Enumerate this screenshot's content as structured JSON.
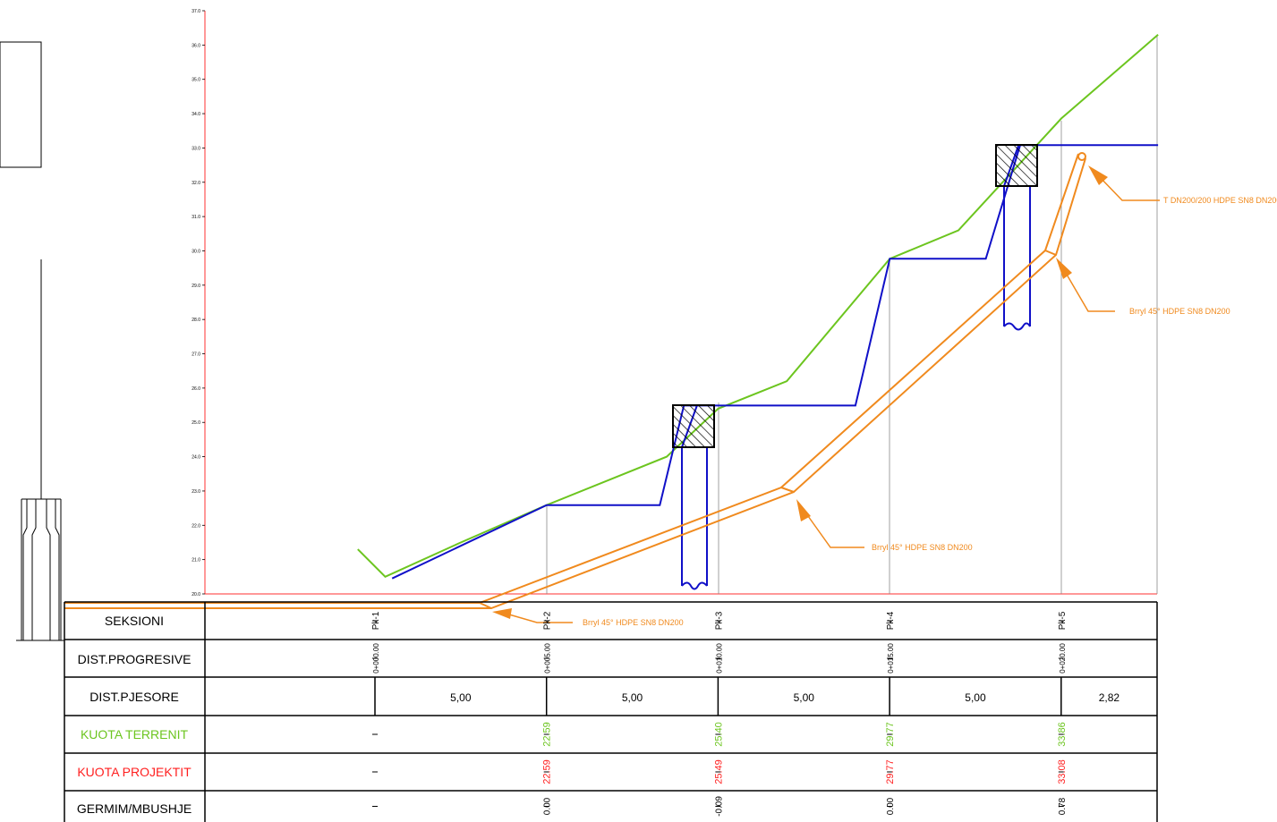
{
  "colors": {
    "terrain": "#6cc51f",
    "project": "#1010c8",
    "pipe": "#f08a1e",
    "axis": "#ff3030",
    "ink": "#000000",
    "grid": "#8a8a8a"
  },
  "y_axis": {
    "ticks": [
      "37.0",
      "36.0",
      "35.0",
      "34.0",
      "33.0",
      "32.0",
      "31.0",
      "30.0",
      "29.0",
      "28.0",
      "27.0",
      "26.0",
      "25.0",
      "24.0",
      "23.0",
      "22.0",
      "21.0",
      "20.0"
    ]
  },
  "stations": [
    {
      "section": "Pk-1",
      "dist_prog": "0+000.00",
      "terrain": "",
      "project": "",
      "cutfill": ""
    },
    {
      "section": "Pk-2",
      "dist_prog": "0+005.00",
      "terrain": "22.59",
      "project": "22.59",
      "cutfill": "0.00"
    },
    {
      "section": "Pk-3",
      "dist_prog": "0+010.00",
      "terrain": "25.40",
      "project": "25.49",
      "cutfill": "-0.09"
    },
    {
      "section": "Pk-4",
      "dist_prog": "0+015.00",
      "terrain": "29.77",
      "project": "29.77",
      "cutfill": "0.00"
    },
    {
      "section": "Pk-5",
      "dist_prog": "0+020.00",
      "terrain": "33.86",
      "project": "33.08",
      "cutfill": "0.78"
    }
  ],
  "partial_distances": [
    "5,00",
    "5,00",
    "5,00",
    "5,00",
    "2,82"
  ],
  "table_labels": {
    "section": "SEKSIONI",
    "dist_prog": "DIST.PROGRESIVE",
    "dist_partial": "DIST.PJESORE",
    "terrain_elev": "KUOTA TERRENIT",
    "project_elev": "KUOTA PROJEKTIT",
    "cut_fill": "GERMIM/MBUSHJE"
  },
  "annotations": {
    "tee": "T DN200/200 HDPE SN8 DN200",
    "elbow_upper": "Brryl 45° HDPE SN8 DN200",
    "elbow_middle": "Brryl 45° HDPE SN8 DN200",
    "elbow_lower": "Brryl 45° HDPE SN8 DN200"
  },
  "chart_data": {
    "type": "line",
    "xlabel": "",
    "ylabel": "",
    "ylim": [
      20,
      37
    ],
    "x_categories": [
      "Pk-1",
      "Pk-2",
      "Pk-3",
      "Pk-4",
      "Pk-5"
    ],
    "series": [
      {
        "name": "KUOTA TERRENIT",
        "x": [
          -0.5,
          0.3,
          2.5,
          5.0,
          8.5,
          10.0,
          12.0,
          15.0,
          17.0,
          20.0,
          22.82
        ],
        "y": [
          21.3,
          20.5,
          21.5,
          22.59,
          24.0,
          25.4,
          26.2,
          29.77,
          30.6,
          33.86,
          36.3
        ]
      },
      {
        "name": "KUOTA PROJEKTIT",
        "x": [
          0.5,
          5.0,
          8.3,
          9.0,
          10.0,
          14.0,
          15.0,
          17.8,
          18.8,
          20.0,
          22.82
        ],
        "y": [
          20.45,
          22.59,
          22.59,
          25.49,
          25.49,
          25.49,
          29.77,
          29.77,
          33.08,
          33.08,
          33.08
        ]
      }
    ]
  }
}
